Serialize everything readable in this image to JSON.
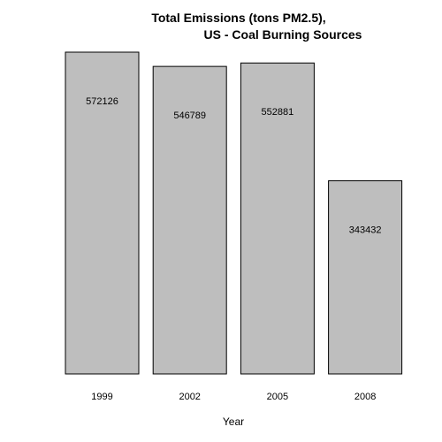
{
  "chart_data": {
    "type": "bar",
    "title": "Total Emissions (tons PM2.5),",
    "subtitle": "US - Coal Burning Sources",
    "xlabel": "Year",
    "ylabel": "",
    "categories": [
      "1999",
      "2002",
      "2005",
      "2008"
    ],
    "values": [
      572126,
      546789,
      552881,
      343432
    ],
    "data_labels": [
      "572126",
      "546789",
      "552881",
      "343432"
    ],
    "ylim": [
      0,
      572126
    ],
    "bar_fill": "#bebebe",
    "bar_stroke": "#000000",
    "grid": false,
    "legend": "none"
  }
}
